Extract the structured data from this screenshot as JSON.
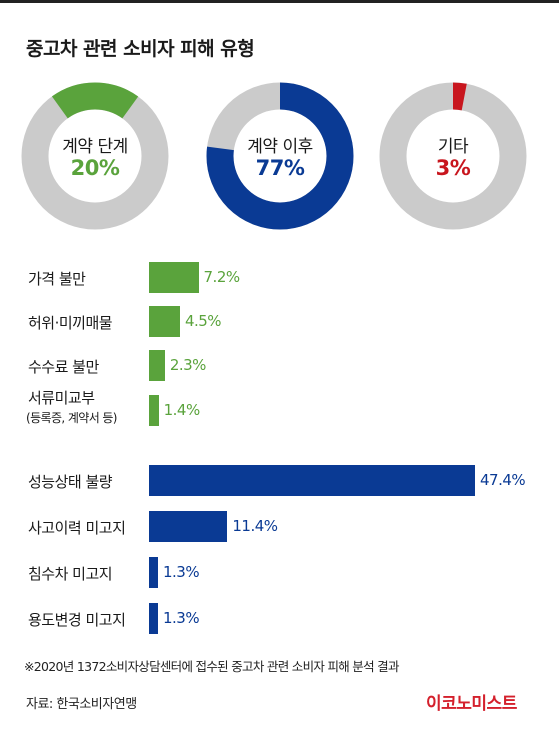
{
  "title": "중고차 관련 소비자 피해 유형",
  "colors": {
    "green": "#5aa33c",
    "blue": "#0a3a94",
    "red": "#c8161e",
    "gray": "#cbcbcb"
  },
  "chart_data": [
    {
      "type": "pie",
      "title": "",
      "donuts": [
        {
          "label": "계약 단계",
          "pct_text": "20%",
          "value": 20,
          "color": "#5aa33c"
        },
        {
          "label": "계약 이후",
          "pct_text": "77%",
          "value": 77,
          "color": "#0a3a94"
        },
        {
          "label": "기타",
          "pct_text": "3%",
          "value": 3,
          "color": "#c8161e"
        }
      ]
    },
    {
      "type": "bar",
      "orientation": "horizontal",
      "xlim": [
        0,
        47.4
      ],
      "groups": [
        {
          "color": "#5aa33c",
          "items": [
            {
              "label": "가격 불만",
              "sub": "",
              "value": 7.2,
              "value_text": "7.2%"
            },
            {
              "label": "허위·미끼매물",
              "sub": "",
              "value": 4.5,
              "value_text": "4.5%"
            },
            {
              "label": "수수료 불만",
              "sub": "",
              "value": 2.3,
              "value_text": "2.3%"
            },
            {
              "label": "서류미교부",
              "sub": "(등록증, 계약서 등)",
              "value": 1.4,
              "value_text": "1.4%"
            }
          ]
        },
        {
          "color": "#0a3a94",
          "items": [
            {
              "label": "성능상태 불량",
              "sub": "",
              "value": 47.4,
              "value_text": "47.4%"
            },
            {
              "label": "사고이력 미고지",
              "sub": "",
              "value": 11.4,
              "value_text": "11.4%"
            },
            {
              "label": "침수차 미고지",
              "sub": "",
              "value": 1.3,
              "value_text": "1.3%"
            },
            {
              "label": "용도변경 미고지",
              "sub": "",
              "value": 1.3,
              "value_text": "1.3%"
            }
          ]
        }
      ]
    }
  ],
  "footnote": "※2020년 1372소비자상담센터에 접수된 중고차 관련 소비자 피해 분석 결과",
  "source": "자료: 한국소비자연맹",
  "brand": "이코노미스트"
}
